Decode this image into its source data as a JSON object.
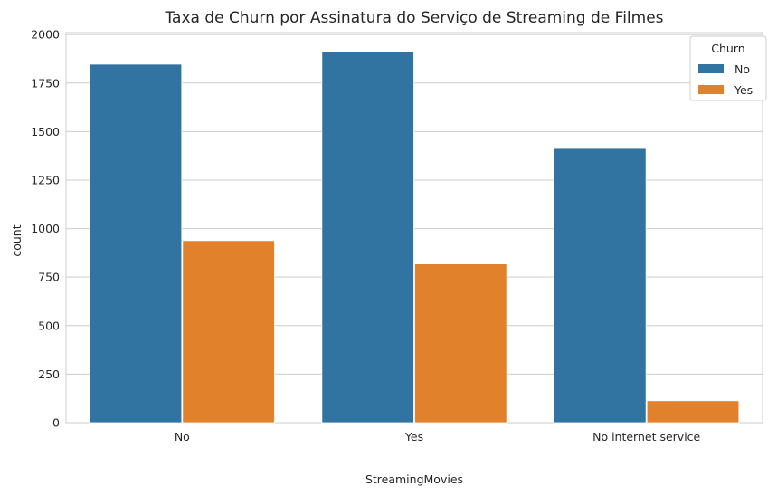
{
  "chart_data": {
    "type": "bar",
    "title": "Taxa de Churn por Assinatura do Serviço de Streaming de Filmes",
    "xlabel": "StreamingMovies",
    "ylabel": "count",
    "categories": [
      "No",
      "Yes",
      "No internet service"
    ],
    "series": [
      {
        "name": "No",
        "color": "#3274a1",
        "values": [
          1847,
          1914,
          1413
        ]
      },
      {
        "name": "Yes",
        "color": "#e1812c",
        "values": [
          938,
          818,
          113
        ]
      }
    ],
    "ylim": [
      0,
      2010
    ],
    "yticks": [
      0,
      250,
      500,
      750,
      1000,
      1250,
      1500,
      1750,
      2000
    ],
    "grid": "horizontal",
    "legend": {
      "title": "Churn",
      "placement": "top-right"
    }
  }
}
